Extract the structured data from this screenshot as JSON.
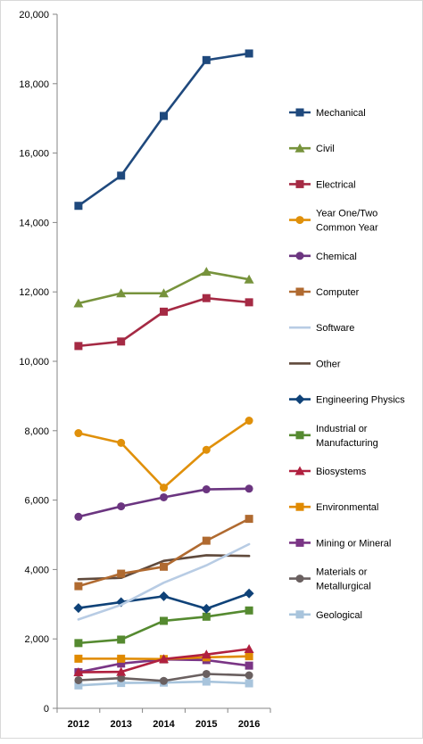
{
  "chart_data": {
    "type": "line",
    "title": "",
    "xlabel": "",
    "ylabel": "",
    "categories": [
      "2012",
      "2013",
      "2014",
      "2015",
      "2016"
    ],
    "ylim": [
      0,
      20000
    ],
    "y_ticks": [
      "0",
      "2,000",
      "4,000",
      "6,000",
      "8,000",
      "10,000",
      "12,000",
      "14,000",
      "16,000",
      "18,000",
      "20,000"
    ],
    "grid": false,
    "legend_position": "right",
    "series": [
      {
        "name": "Mechanical",
        "color": "#1f497d",
        "marker": "square",
        "values": [
          14480,
          15350,
          17070,
          18680,
          18870
        ]
      },
      {
        "name": "Civil",
        "color": "#77933c",
        "marker": "triangle",
        "values": [
          11670,
          11960,
          11960,
          12580,
          12360
        ]
      },
      {
        "name": "Electrical",
        "color": "#a52a44",
        "marker": "square",
        "values": [
          10440,
          10570,
          11430,
          11820,
          11700
        ]
      },
      {
        "name": "Year One/Two Common Year",
        "color": "#e0900a",
        "marker": "circle",
        "values": [
          7930,
          7650,
          6360,
          7450,
          8290
        ]
      },
      {
        "name": "Chemical",
        "color": "#6b3580",
        "marker": "circle",
        "values": [
          5520,
          5820,
          6080,
          6310,
          6330
        ]
      },
      {
        "name": "Computer",
        "color": "#b06a30",
        "marker": "square",
        "values": [
          3520,
          3880,
          4080,
          4830,
          5460
        ]
      },
      {
        "name": "Software",
        "color": "#b8cce4",
        "marker": "none",
        "values": [
          2560,
          2980,
          3620,
          4120,
          4730
        ]
      },
      {
        "name": "Other",
        "color": "#604a3c",
        "marker": "none",
        "values": [
          3720,
          3760,
          4250,
          4410,
          4390
        ]
      },
      {
        "name": "Engineering Physics",
        "color": "#0f4278",
        "marker": "diamond",
        "values": [
          2890,
          3060,
          3230,
          2870,
          3310
        ]
      },
      {
        "name": "Industrial or Manufacturing",
        "color": "#558a30",
        "marker": "square",
        "values": [
          1880,
          1980,
          2520,
          2640,
          2820
        ]
      },
      {
        "name": "Biosystems",
        "color": "#b0203f",
        "marker": "triangle",
        "values": [
          1040,
          1050,
          1420,
          1550,
          1710
        ]
      },
      {
        "name": "Environmental",
        "color": "#e08a00",
        "marker": "square",
        "values": [
          1430,
          1430,
          1420,
          1470,
          1500
        ]
      },
      {
        "name": "Mining or Mineral",
        "color": "#7a3585",
        "marker": "square",
        "values": [
          1040,
          1290,
          1410,
          1390,
          1230
        ]
      },
      {
        "name": "Materials or Metallurgical",
        "color": "#6a6060",
        "marker": "circle",
        "values": [
          810,
          870,
          790,
          990,
          950
        ]
      },
      {
        "name": "Geological",
        "color": "#a8c4dc",
        "marker": "square",
        "values": [
          660,
          730,
          740,
          770,
          720
        ]
      }
    ]
  }
}
